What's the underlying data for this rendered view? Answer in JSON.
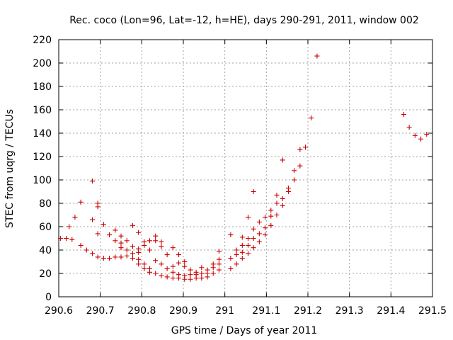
{
  "chart_data": {
    "type": "scatter",
    "title": "Rec. coco (Lon=96, Lat=-12, h=HE), days 290-291, 2011, window 002",
    "xlabel": "GPS time / Days of year 2011",
    "ylabel": "STEC from uqrg / TECUs",
    "xlim": [
      290.6,
      291.5
    ],
    "ylim": [
      0,
      220
    ],
    "x_ticks": [
      290.6,
      290.7,
      290.8,
      290.9,
      291,
      291.1,
      291.2,
      291.3,
      291.4,
      291.5
    ],
    "x_tick_labels": [
      "290.6",
      "290.7",
      "290.8",
      "290.9",
      "291",
      "291.1",
      "291.2",
      "291.3",
      "291.4",
      "291.5"
    ],
    "y_ticks": [
      0,
      20,
      40,
      60,
      80,
      100,
      120,
      140,
      160,
      180,
      200,
      220
    ],
    "y_tick_labels": [
      "0",
      "20",
      "40",
      "60",
      "80",
      "100",
      "120",
      "140",
      "160",
      "180",
      "200",
      "220"
    ],
    "grid": true,
    "marker": "+",
    "color": "#cc0000",
    "series": [
      {
        "name": "STEC",
        "points": [
          [
            290.604,
            50
          ],
          [
            290.618,
            50
          ],
          [
            290.625,
            60
          ],
          [
            290.632,
            49
          ],
          [
            290.639,
            68
          ],
          [
            290.653,
            81
          ],
          [
            290.653,
            44
          ],
          [
            290.667,
            40
          ],
          [
            290.681,
            37
          ],
          [
            290.681,
            66
          ],
          [
            290.681,
            99
          ],
          [
            290.694,
            34
          ],
          [
            290.694,
            77
          ],
          [
            290.694,
            80
          ],
          [
            290.694,
            54
          ],
          [
            290.708,
            33
          ],
          [
            290.708,
            62
          ],
          [
            290.722,
            33
          ],
          [
            290.722,
            53
          ],
          [
            290.736,
            34
          ],
          [
            290.736,
            48
          ],
          [
            290.736,
            57
          ],
          [
            290.75,
            34
          ],
          [
            290.75,
            42
          ],
          [
            290.75,
            46
          ],
          [
            290.75,
            52
          ],
          [
            290.764,
            35
          ],
          [
            290.764,
            40
          ],
          [
            290.764,
            48
          ],
          [
            290.778,
            33
          ],
          [
            290.778,
            37
          ],
          [
            290.778,
            43
          ],
          [
            290.778,
            61
          ],
          [
            290.792,
            28
          ],
          [
            290.792,
            32
          ],
          [
            290.792,
            38
          ],
          [
            290.792,
            41
          ],
          [
            290.792,
            55
          ],
          [
            290.806,
            24
          ],
          [
            290.806,
            28
          ],
          [
            290.806,
            44
          ],
          [
            290.806,
            47
          ],
          [
            290.819,
            21
          ],
          [
            290.819,
            24
          ],
          [
            290.819,
            40
          ],
          [
            290.819,
            48
          ],
          [
            290.833,
            20
          ],
          [
            290.833,
            31
          ],
          [
            290.833,
            48
          ],
          [
            290.833,
            52
          ],
          [
            290.847,
            18
          ],
          [
            290.847,
            28
          ],
          [
            290.847,
            43
          ],
          [
            290.847,
            47
          ],
          [
            290.861,
            17
          ],
          [
            290.861,
            24
          ],
          [
            290.861,
            36
          ],
          [
            290.875,
            16
          ],
          [
            290.875,
            21
          ],
          [
            290.875,
            26
          ],
          [
            290.875,
            42
          ],
          [
            290.889,
            16
          ],
          [
            290.889,
            19
          ],
          [
            290.889,
            29
          ],
          [
            290.889,
            36
          ],
          [
            290.903,
            15
          ],
          [
            290.903,
            18
          ],
          [
            290.903,
            26
          ],
          [
            290.903,
            30
          ],
          [
            290.917,
            15
          ],
          [
            290.917,
            19
          ],
          [
            290.917,
            23
          ],
          [
            290.931,
            16
          ],
          [
            290.931,
            19
          ],
          [
            290.931,
            21
          ],
          [
            290.944,
            16
          ],
          [
            290.944,
            20
          ],
          [
            290.944,
            25
          ],
          [
            290.958,
            17
          ],
          [
            290.958,
            20
          ],
          [
            290.958,
            23
          ],
          [
            290.972,
            20
          ],
          [
            290.972,
            25
          ],
          [
            290.972,
            28
          ],
          [
            290.986,
            23
          ],
          [
            290.986,
            28
          ],
          [
            290.986,
            32
          ],
          [
            290.986,
            39
          ],
          [
            291.014,
            24
          ],
          [
            291.014,
            33
          ],
          [
            291.014,
            53
          ],
          [
            291.028,
            28
          ],
          [
            291.028,
            36
          ],
          [
            291.028,
            40
          ],
          [
            291.042,
            33
          ],
          [
            291.042,
            38
          ],
          [
            291.042,
            44
          ],
          [
            291.042,
            51
          ],
          [
            291.056,
            37
          ],
          [
            291.056,
            44
          ],
          [
            291.056,
            50
          ],
          [
            291.056,
            68
          ],
          [
            291.069,
            42
          ],
          [
            291.069,
            50
          ],
          [
            291.069,
            58
          ],
          [
            291.069,
            90
          ],
          [
            291.083,
            47
          ],
          [
            291.083,
            54
          ],
          [
            291.083,
            64
          ],
          [
            291.097,
            53
          ],
          [
            291.097,
            59
          ],
          [
            291.097,
            68
          ],
          [
            291.111,
            61
          ],
          [
            291.111,
            69
          ],
          [
            291.111,
            74
          ],
          [
            291.125,
            70
          ],
          [
            291.125,
            80
          ],
          [
            291.125,
            87
          ],
          [
            291.139,
            78
          ],
          [
            291.139,
            84
          ],
          [
            291.139,
            117
          ],
          [
            291.153,
            90
          ],
          [
            291.153,
            93
          ],
          [
            291.167,
            100
          ],
          [
            291.167,
            108
          ],
          [
            291.181,
            112
          ],
          [
            291.181,
            126
          ],
          [
            291.194,
            128
          ],
          [
            291.208,
            153
          ],
          [
            291.222,
            206
          ],
          [
            291.431,
            156
          ],
          [
            291.444,
            145
          ],
          [
            291.458,
            138
          ],
          [
            291.472,
            135
          ],
          [
            291.486,
            139
          ]
        ]
      }
    ]
  }
}
